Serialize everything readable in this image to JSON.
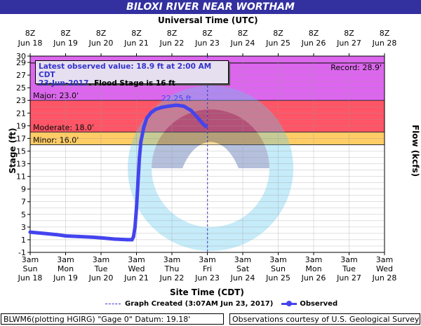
{
  "header": {
    "title": "BILOXI RIVER NEAR WORTHAM"
  },
  "top_axis_title": "Universal Time (UTC)",
  "bottom_axis_title": "Site Time (CDT)",
  "left_axis_title": "Stage (ft)",
  "right_axis_title": "Flow (kcfs)",
  "info_box": {
    "line1": "Latest observed value: 18.9 ft at 2:00 AM CDT",
    "date": "23-Jun-2017",
    "flood_text": ". Flood Stage is 16 ft"
  },
  "legend": {
    "created": "Graph Created (3:07AM Jun 23, 2017)",
    "observed": "Observed"
  },
  "footer": {
    "left": "BLWM6(plotting HGIRG) \"Gage 0\" Datum: 19.18'",
    "right": "Observations courtesy of U.S. Geological Survey"
  },
  "chart_data": {
    "type": "line",
    "ylim": [
      -1,
      30
    ],
    "y_ticks": [
      -1,
      1,
      3,
      5,
      7,
      9,
      11,
      13,
      15,
      17,
      19,
      21,
      23,
      25,
      27,
      29,
      30
    ],
    "bottom_ticks": [
      [
        "3am",
        "Sun",
        "Jun 18"
      ],
      [
        "3am",
        "Mon",
        "Jun 19"
      ],
      [
        "3am",
        "Tue",
        "Jun 20"
      ],
      [
        "3am",
        "Wed",
        "Jun 21"
      ],
      [
        "3am",
        "Thu",
        "Jun 22"
      ],
      [
        "3am",
        "Fri",
        "Jun 23"
      ],
      [
        "3am",
        "Sat",
        "Jun 24"
      ],
      [
        "3am",
        "Sun",
        "Jun 25"
      ],
      [
        "3am",
        "Mon",
        "Jun 26"
      ],
      [
        "3am",
        "Tue",
        "Jun 27"
      ],
      [
        "3am",
        "Wed",
        "Jun 28"
      ]
    ],
    "top_ticks": [
      [
        "8Z",
        "Jun 18"
      ],
      [
        "8Z",
        "Jun 19"
      ],
      [
        "8Z",
        "Jun 20"
      ],
      [
        "8Z",
        "Jun 21"
      ],
      [
        "8Z",
        "Jun 22"
      ],
      [
        "8Z",
        "Jun 23"
      ],
      [
        "8Z",
        "Jun 24"
      ],
      [
        "8Z",
        "Jun 25"
      ],
      [
        "8Z",
        "Jun 26"
      ],
      [
        "8Z",
        "Jun 27"
      ],
      [
        "8Z",
        "Jun 28"
      ]
    ],
    "flood_categories": [
      {
        "name": "Minor",
        "label": "Minor: 16.0'",
        "from": 16,
        "to": 18,
        "color": "#ffcc66"
      },
      {
        "name": "Moderate",
        "label": "Moderate: 18.0'",
        "from": 18,
        "to": 23,
        "color": "#ff5566"
      },
      {
        "name": "Major",
        "label": "Major: 23.0'",
        "from": 23,
        "to": 30,
        "color": "#dd66ee"
      }
    ],
    "record": {
      "label": "Record: 28.9'",
      "value": 28.9
    },
    "peak_label": "22.25 ft",
    "graph_created": "2017-06-23T03:07",
    "series": [
      {
        "name": "Observed",
        "color": "#4444ee",
        "points": [
          [
            "2017-06-18T03:00",
            2.2
          ],
          [
            "2017-06-18T12:00",
            2.0
          ],
          [
            "2017-06-18T21:00",
            1.8
          ],
          [
            "2017-06-19T03:00",
            1.6
          ],
          [
            "2017-06-19T12:00",
            1.5
          ],
          [
            "2017-06-19T21:00",
            1.4
          ],
          [
            "2017-06-20T03:00",
            1.3
          ],
          [
            "2017-06-20T12:00",
            1.1
          ],
          [
            "2017-06-20T21:00",
            1.0
          ],
          [
            "2017-06-21T00:00",
            1.0
          ],
          [
            "2017-06-21T01:00",
            1.5
          ],
          [
            "2017-06-21T02:00",
            3.0
          ],
          [
            "2017-06-21T03:00",
            6.0
          ],
          [
            "2017-06-21T04:00",
            10.0
          ],
          [
            "2017-06-21T05:00",
            14.0
          ],
          [
            "2017-06-21T06:00",
            16.5
          ],
          [
            "2017-06-21T08:00",
            18.8
          ],
          [
            "2017-06-21T10:00",
            20.2
          ],
          [
            "2017-06-21T13:00",
            21.1
          ],
          [
            "2017-06-21T16:00",
            21.6
          ],
          [
            "2017-06-21T20:00",
            21.9
          ],
          [
            "2017-06-22T01:00",
            22.1
          ],
          [
            "2017-06-22T06:00",
            22.25
          ],
          [
            "2017-06-22T11:00",
            22.1
          ],
          [
            "2017-06-22T16:00",
            21.4
          ],
          [
            "2017-06-22T20:00",
            20.4
          ],
          [
            "2017-06-23T00:00",
            19.3
          ],
          [
            "2017-06-23T02:00",
            18.9
          ]
        ]
      }
    ]
  }
}
